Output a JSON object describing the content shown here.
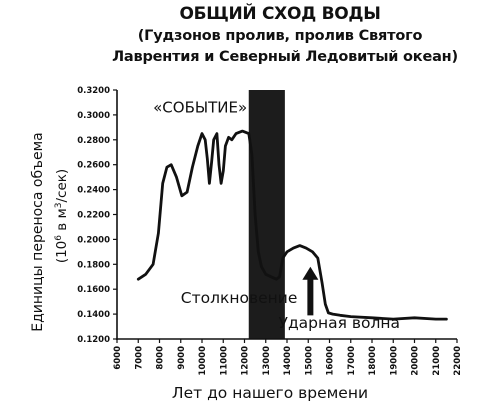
{
  "chart_data": {
    "type": "line",
    "title": "ОБЩИЙ СХОД ВОДЫ",
    "subtitle_lines": [
      "(Гудзонов пролив, пролив Святого",
      "Лаврентия и Северный Ледовитый океан)"
    ],
    "ylabel_lines": [
      "Единицы переноса объема",
      "(10",
      "6",
      " в м",
      "3",
      "/сек)"
    ],
    "xlabel": "Лет до нашего времени",
    "xlim": [
      6000,
      22000
    ],
    "ylim": [
      0.12,
      0.32
    ],
    "x_ticks": [
      6000,
      7000,
      8000,
      9000,
      10000,
      11000,
      12000,
      13000,
      14000,
      15000,
      16000,
      17000,
      18000,
      19000,
      20000,
      21000,
      22000
    ],
    "x_tick_labels": [
      "6000",
      "7000",
      "8000",
      "9000",
      "10000",
      "11000",
      "12000",
      "13000",
      "14000",
      "15000",
      "16000",
      "17000",
      "18000",
      "19000",
      "20000",
      "21000",
      "22000"
    ],
    "y_ticks": [
      0.12,
      0.14,
      0.16,
      0.18,
      0.2,
      0.22,
      0.24,
      0.26,
      0.28,
      0.3,
      0.32
    ],
    "y_tick_labels": [
      "0.1200",
      "0.1400",
      "0.1600",
      "0.1800",
      "0.2000",
      "0.2200",
      "0.2400",
      "0.2600",
      "0.2800",
      "0.3000",
      "0.3200"
    ],
    "grid": false,
    "series": [
      {
        "x": [
          7000,
          7350,
          7700,
          7950,
          8150,
          8350,
          8550,
          8800,
          9050,
          9300,
          9550,
          9800,
          10000,
          10150,
          10250,
          10350,
          10450,
          10550,
          10700,
          10800,
          10900,
          11000,
          11100,
          11250,
          11400,
          11600,
          11900,
          12200,
          12350,
          12500,
          12650,
          12800,
          13000,
          13250,
          13500,
          13650,
          13800,
          14000,
          14300,
          14600,
          14900,
          15200,
          15450,
          15650,
          15800,
          15950,
          16150,
          16500,
          17000,
          18000,
          19000,
          20000,
          21000,
          21500
        ],
        "y": [
          0.168,
          0.172,
          0.18,
          0.205,
          0.245,
          0.258,
          0.26,
          0.25,
          0.235,
          0.238,
          0.258,
          0.275,
          0.285,
          0.28,
          0.265,
          0.245,
          0.262,
          0.28,
          0.285,
          0.26,
          0.245,
          0.255,
          0.275,
          0.282,
          0.28,
          0.285,
          0.287,
          0.285,
          0.268,
          0.22,
          0.19,
          0.178,
          0.172,
          0.17,
          0.168,
          0.17,
          0.185,
          0.19,
          0.193,
          0.195,
          0.193,
          0.19,
          0.185,
          0.165,
          0.148,
          0.141,
          0.14,
          0.139,
          0.138,
          0.137,
          0.136,
          0.137,
          0.136,
          0.136
        ]
      }
    ],
    "shaded_band": {
      "x_start": 12200,
      "x_end": 13900
    },
    "annotations": [
      {
        "text": "«СОБЫТИЕ»",
        "x": 7700,
        "y": 0.302
      },
      {
        "text": "Столкновение",
        "x": 9000,
        "y": 0.149
      },
      {
        "text": "Ударная волна",
        "x": 13600,
        "y": 0.129
      }
    ],
    "arrow": {
      "x": 15100,
      "y_tail": 0.139,
      "y_head": 0.178
    },
    "colors": {
      "line": "#111111",
      "band": "#1c1c1c",
      "background": "#ffffff"
    }
  }
}
